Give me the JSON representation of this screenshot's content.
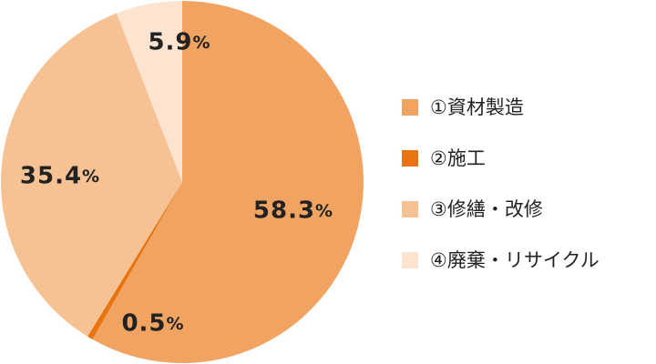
{
  "chart_data": {
    "type": "pie",
    "categories": [
      "①資材製造",
      "②施工",
      "③修繕・改修",
      "④廃棄・リサイクル"
    ],
    "values": [
      58.3,
      0.5,
      35.4,
      5.9
    ],
    "value_labels": [
      "58.3%",
      "0.5%",
      "35.4%",
      "5.9%"
    ],
    "colors": [
      "#f1a462",
      "#e8730f",
      "#f6c293",
      "#fce4d1"
    ],
    "legend": "right"
  }
}
